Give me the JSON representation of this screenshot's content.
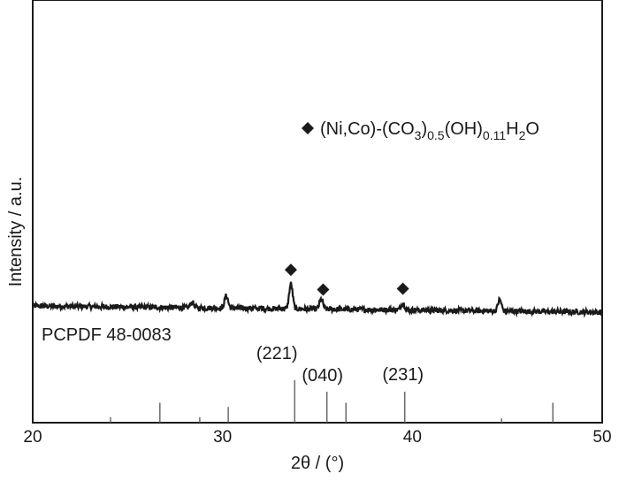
{
  "chart_data": {
    "type": "line",
    "xlabel": "2θ / (°)",
    "ylabel": "Intensity / a.u.",
    "xlim": [
      20,
      50
    ],
    "xticks": [
      "20",
      "30",
      "40",
      "50"
    ],
    "grid": false,
    "legend": {
      "marker": "diamond",
      "text_parts": [
        {
          "t": "(Ni,Co)-(CO",
          "sub": false
        },
        {
          "t": "3",
          "sub": true
        },
        {
          "t": ")",
          "sub": false
        },
        {
          "t": "0.5",
          "sub": true
        },
        {
          "t": "(OH)",
          "sub": false
        },
        {
          "t": "0.11",
          "sub": true
        },
        {
          "t": "H",
          "sub": false
        },
        {
          "t": "2",
          "sub": true
        },
        {
          "t": "O",
          "sub": false
        }
      ],
      "placement": "top-right"
    },
    "series": [
      {
        "kind": "xrd-pattern",
        "baseline_start": 100,
        "baseline_end": 93,
        "peaks": [
          {
            "x": 28.4,
            "height": 6
          },
          {
            "x": 30.2,
            "height": 14
          },
          {
            "x": 33.6,
            "height": 28
          },
          {
            "x": 35.2,
            "height": 11
          },
          {
            "x": 39.5,
            "height": 8
          },
          {
            "x": 44.6,
            "height": 13
          }
        ]
      }
    ],
    "markers": [
      {
        "x": 33.6,
        "symbol": "diamond"
      },
      {
        "x": 35.3,
        "symbol": "diamond"
      },
      {
        "x": 39.5,
        "symbol": "diamond"
      }
    ],
    "reference": {
      "label": "PCPDF 48-0083",
      "lines": [
        {
          "x": 24.1,
          "rel": 13
        },
        {
          "x": 26.7,
          "rel": 47
        },
        {
          "x": 28.8,
          "rel": 13
        },
        {
          "x": 30.3,
          "rel": 37
        },
        {
          "x": 33.8,
          "rel": 100,
          "hkl": "(221)"
        },
        {
          "x": 35.5,
          "rel": 73,
          "hkl": "(040)"
        },
        {
          "x": 36.5,
          "rel": 47
        },
        {
          "x": 39.6,
          "rel": 73,
          "hkl": "(231)"
        },
        {
          "x": 44.7,
          "rel": 10
        },
        {
          "x": 47.4,
          "rel": 47
        }
      ]
    },
    "colors": {
      "line": "#1a1a1a",
      "ref": "#555555"
    }
  }
}
